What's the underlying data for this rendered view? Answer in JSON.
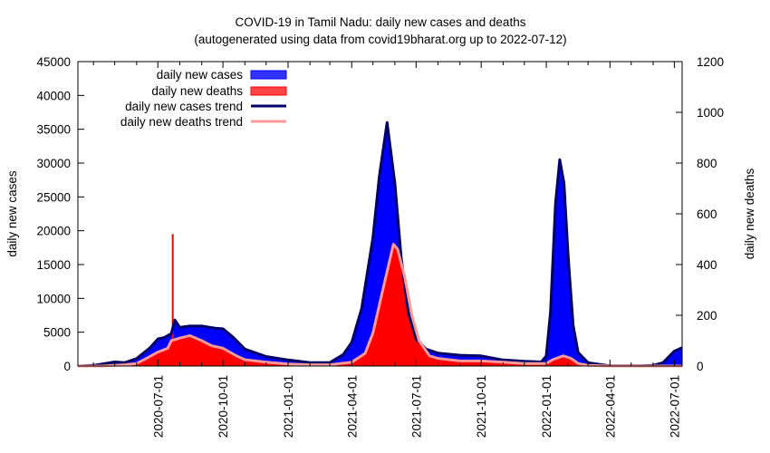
{
  "chart_data": {
    "type": "area",
    "title": "COVID-19 in Tamil Nadu: daily new cases and deaths",
    "subtitle": "(autogenerated using data from covid19bharat.org up to 2022-07-12)",
    "ylabel_left": "daily new cases",
    "ylabel_right": "daily new deaths",
    "ylim_left": [
      0,
      45000
    ],
    "ylim_right": [
      0,
      1200
    ],
    "y_ticks_left": [
      "0",
      "5000",
      "10000",
      "15000",
      "20000",
      "25000",
      "30000",
      "35000",
      "40000",
      "45000"
    ],
    "y_ticks_right": [
      "0",
      "200",
      "400",
      "600",
      "800",
      "1000",
      "1200"
    ],
    "x_ticks": [
      "2020-07-01",
      "2020-10-01",
      "2021-01-01",
      "2021-04-01",
      "2021-07-01",
      "2021-10-01",
      "2022-01-01",
      "2022-04-01",
      "2022-07-01"
    ],
    "x_range": [
      "2020-03-10",
      "2022-07-12"
    ],
    "legend": [
      {
        "label": "daily new cases",
        "kind": "box",
        "color": "#0000ff"
      },
      {
        "label": "daily new deaths",
        "kind": "box",
        "color": "#ff0000"
      },
      {
        "label": "daily new cases trend",
        "kind": "line",
        "color": "#000066"
      },
      {
        "label": "daily new deaths trend",
        "kind": "line",
        "color": "#ff9999"
      }
    ],
    "legend_position": "top-left",
    "series": [
      {
        "name": "daily new cases trend",
        "axis": "left",
        "points": [
          [
            "2020-03-10",
            0
          ],
          [
            "2020-04-01",
            100
          ],
          [
            "2020-05-01",
            600
          ],
          [
            "2020-05-15",
            500
          ],
          [
            "2020-06-01",
            1100
          ],
          [
            "2020-06-20",
            2700
          ],
          [
            "2020-07-01",
            4000
          ],
          [
            "2020-07-10",
            4200
          ],
          [
            "2020-07-20",
            4800
          ],
          [
            "2020-07-25",
            6800
          ],
          [
            "2020-08-01",
            5700
          ],
          [
            "2020-08-15",
            5900
          ],
          [
            "2020-09-01",
            5900
          ],
          [
            "2020-09-20",
            5600
          ],
          [
            "2020-10-01",
            5500
          ],
          [
            "2020-10-15",
            4300
          ],
          [
            "2020-11-01",
            2500
          ],
          [
            "2020-12-01",
            1400
          ],
          [
            "2021-01-01",
            900
          ],
          [
            "2021-02-01",
            500
          ],
          [
            "2021-03-01",
            500
          ],
          [
            "2021-03-20",
            1700
          ],
          [
            "2021-04-01",
            3500
          ],
          [
            "2021-04-15",
            8500
          ],
          [
            "2021-05-01",
            19000
          ],
          [
            "2021-05-10",
            28000
          ],
          [
            "2021-05-21",
            36000
          ],
          [
            "2021-06-01",
            27000
          ],
          [
            "2021-06-10",
            16000
          ],
          [
            "2021-06-20",
            8000
          ],
          [
            "2021-07-01",
            4000
          ],
          [
            "2021-07-15",
            2500
          ],
          [
            "2021-08-01",
            1900
          ],
          [
            "2021-09-01",
            1600
          ],
          [
            "2021-10-01",
            1500
          ],
          [
            "2021-11-01",
            900
          ],
          [
            "2021-12-01",
            700
          ],
          [
            "2021-12-25",
            600
          ],
          [
            "2022-01-01",
            1500
          ],
          [
            "2022-01-07",
            8000
          ],
          [
            "2022-01-14",
            24000
          ],
          [
            "2022-01-20",
            30500
          ],
          [
            "2022-01-26",
            27000
          ],
          [
            "2022-02-01",
            16000
          ],
          [
            "2022-02-08",
            6000
          ],
          [
            "2022-02-15",
            2000
          ],
          [
            "2022-03-01",
            500
          ],
          [
            "2022-04-01",
            25
          ],
          [
            "2022-05-15",
            25
          ],
          [
            "2022-06-01",
            100
          ],
          [
            "2022-06-15",
            500
          ],
          [
            "2022-07-01",
            2200
          ],
          [
            "2022-07-12",
            2700
          ]
        ]
      },
      {
        "name": "daily new deaths trend",
        "axis": "right",
        "points": [
          [
            "2020-03-10",
            0
          ],
          [
            "2020-04-15",
            0
          ],
          [
            "2020-05-15",
            5
          ],
          [
            "2020-06-01",
            10
          ],
          [
            "2020-06-15",
            30
          ],
          [
            "2020-07-01",
            55
          ],
          [
            "2020-07-15",
            70
          ],
          [
            "2020-07-20",
            100
          ],
          [
            "2020-08-01",
            110
          ],
          [
            "2020-08-15",
            120
          ],
          [
            "2020-09-01",
            100
          ],
          [
            "2020-09-15",
            80
          ],
          [
            "2020-10-01",
            70
          ],
          [
            "2020-10-20",
            40
          ],
          [
            "2020-11-01",
            25
          ],
          [
            "2020-12-01",
            15
          ],
          [
            "2021-01-01",
            8
          ],
          [
            "2021-02-01",
            5
          ],
          [
            "2021-03-01",
            5
          ],
          [
            "2021-04-01",
            15
          ],
          [
            "2021-04-20",
            50
          ],
          [
            "2021-05-01",
            130
          ],
          [
            "2021-05-15",
            300
          ],
          [
            "2021-05-30",
            480
          ],
          [
            "2021-06-05",
            460
          ],
          [
            "2021-06-15",
            350
          ],
          [
            "2021-06-25",
            200
          ],
          [
            "2021-07-05",
            100
          ],
          [
            "2021-07-20",
            40
          ],
          [
            "2021-08-01",
            30
          ],
          [
            "2021-09-01",
            20
          ],
          [
            "2021-10-01",
            20
          ],
          [
            "2021-11-01",
            15
          ],
          [
            "2021-12-01",
            10
          ],
          [
            "2022-01-01",
            10
          ],
          [
            "2022-01-10",
            25
          ],
          [
            "2022-01-25",
            40
          ],
          [
            "2022-02-05",
            30
          ],
          [
            "2022-02-15",
            10
          ],
          [
            "2022-03-01",
            3
          ],
          [
            "2022-04-01",
            0
          ],
          [
            "2022-07-12",
            0
          ]
        ]
      },
      {
        "name": "daily new deaths (spike)",
        "axis": "right",
        "points": [
          [
            "2020-07-22",
            520
          ]
        ]
      }
    ]
  }
}
